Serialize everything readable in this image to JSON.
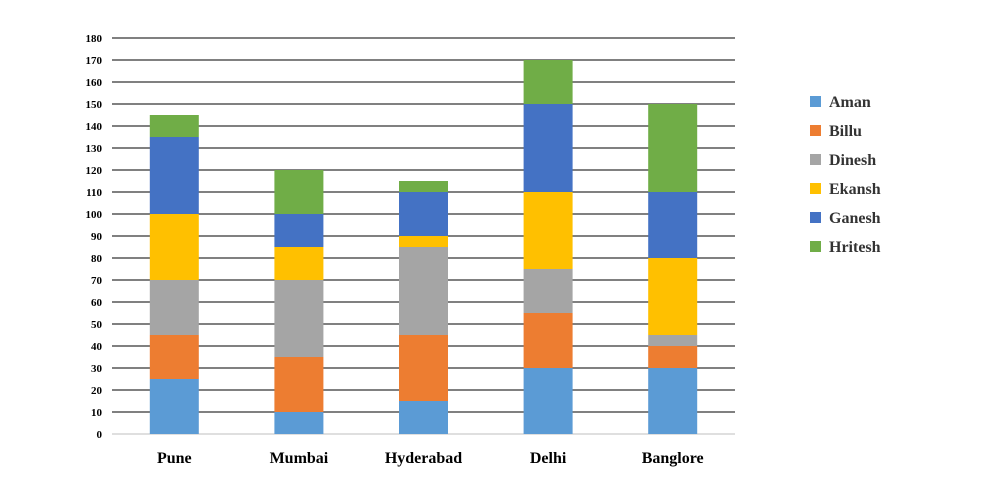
{
  "chart_data": {
    "type": "bar",
    "stacked": true,
    "title": "",
    "xlabel": "",
    "ylabel": "",
    "categories": [
      "Pune",
      "Mumbai",
      "Hyderabad",
      "Delhi",
      "Banglore"
    ],
    "ylim": [
      0,
      180
    ],
    "yticks": [
      0,
      10,
      20,
      30,
      40,
      50,
      60,
      70,
      80,
      90,
      100,
      110,
      120,
      130,
      140,
      150,
      160,
      170,
      180
    ],
    "grid": true,
    "legend_position": "right",
    "series": [
      {
        "name": "Aman",
        "color": "#5B9BD5",
        "values": [
          25,
          10,
          15,
          30,
          30
        ]
      },
      {
        "name": "Billu",
        "color": "#ED7D31",
        "values": [
          20,
          25,
          30,
          25,
          10
        ]
      },
      {
        "name": "Dinesh",
        "color": "#A5A5A5",
        "values": [
          25,
          35,
          40,
          20,
          5
        ]
      },
      {
        "name": "Ekansh",
        "color": "#FFC000",
        "values": [
          30,
          15,
          5,
          35,
          35
        ]
      },
      {
        "name": "Ganesh",
        "color": "#4472C4",
        "values": [
          35,
          15,
          20,
          40,
          30
        ]
      },
      {
        "name": "Hritesh",
        "color": "#70AD47",
        "values": [
          10,
          20,
          5,
          20,
          40
        ]
      }
    ]
  }
}
